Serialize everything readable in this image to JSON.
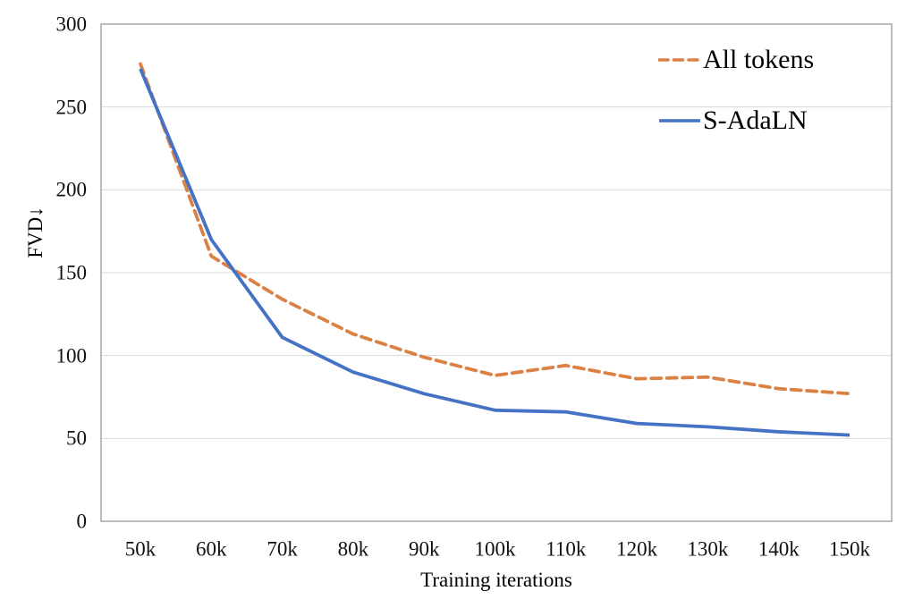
{
  "chart_data": {
    "type": "line",
    "title": "",
    "xlabel": "Training iterations",
    "ylabel": "FVD↓",
    "x": [
      "50k",
      "60k",
      "70k",
      "80k",
      "90k",
      "100k",
      "110k",
      "120k",
      "130k",
      "140k",
      "150k"
    ],
    "series": [
      {
        "name": "All tokens",
        "style": "dashed",
        "color": "#DC8144",
        "values": [
          276,
          160,
          134,
          113,
          99,
          88,
          94,
          86,
          87,
          80,
          77
        ]
      },
      {
        "name": "S-AdaLN",
        "style": "solid",
        "color": "#4472C4",
        "values": [
          273,
          170,
          111,
          90,
          77,
          67,
          66,
          59,
          57,
          54,
          52
        ]
      }
    ],
    "ylim": [
      0,
      300
    ],
    "yticks": [
      0,
      50,
      100,
      150,
      200,
      250,
      300
    ],
    "grid": "horizontal",
    "legend_position": "top-right",
    "colors": {
      "plot_border": "#a6a6a6",
      "gridline": "#d9d9d9",
      "text": "#111111"
    }
  }
}
